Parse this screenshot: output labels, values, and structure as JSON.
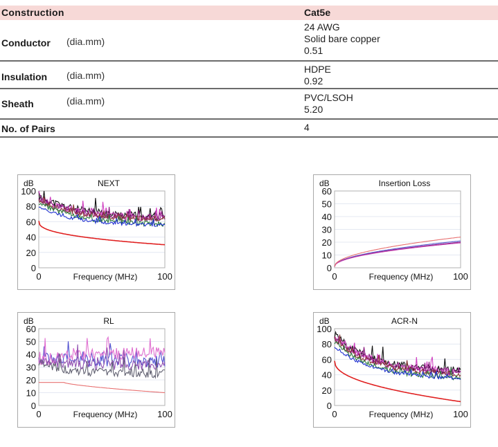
{
  "table": {
    "header": {
      "label": "Construction",
      "value": "Cat5e"
    },
    "rows": [
      {
        "label": "Conductor",
        "unit": "(dia.mm)",
        "lines": [
          "24 AWG",
          "Solid bare copper",
          "0.51"
        ]
      },
      {
        "label": "Insulation",
        "unit": "(dia.mm)",
        "lines": [
          "HDPE",
          "0.92"
        ]
      },
      {
        "label": "Sheath",
        "unit": "(dia.mm)",
        "lines": [
          "PVC/LSOH",
          "5.20"
        ]
      },
      {
        "label": "No. of Pairs",
        "unit": "",
        "lines": [
          "4"
        ]
      }
    ]
  },
  "colors": {
    "header_bg": "#f7d9d7",
    "limit_line": "#e02020"
  },
  "chart_data": [
    {
      "type": "line",
      "title": "NEXT",
      "ylabel": "dB",
      "xlabel": "Frequency (MHz)",
      "xlim": [
        0,
        100
      ],
      "ylim": [
        0,
        100
      ],
      "yticks": [
        0,
        20,
        40,
        60,
        80,
        100
      ],
      "xticks": [
        0,
        100
      ],
      "grid": true,
      "limit": {
        "name": "limit",
        "color": "#e02020",
        "start": 61,
        "end": 30,
        "shape": "decay"
      },
      "series": [
        {
          "name": "pair-black",
          "color": "#111111",
          "start": 92,
          "end": 64,
          "noise": 14
        },
        {
          "name": "pair-magenta",
          "color": "#d040c0",
          "start": 90,
          "end": 62,
          "noise": 14
        },
        {
          "name": "pair-purple",
          "color": "#8a1a80",
          "start": 88,
          "end": 62,
          "noise": 12
        },
        {
          "name": "pair-brown",
          "color": "#8a3a3a",
          "start": 86,
          "end": 61,
          "noise": 10
        },
        {
          "name": "pair-green",
          "color": "#2a7a3a",
          "start": 84,
          "end": 55,
          "noise": 9
        },
        {
          "name": "pair-blue",
          "color": "#2030d0",
          "start": 78,
          "end": 54,
          "noise": 6
        }
      ]
    },
    {
      "type": "line",
      "title": "Insertion Loss",
      "ylabel": "dB",
      "xlabel": "Frequency (MHz)",
      "xlim": [
        0,
        100
      ],
      "ylim": [
        0,
        60
      ],
      "yticks": [
        0,
        10,
        20,
        30,
        40,
        50,
        60
      ],
      "xticks": [
        0,
        100
      ],
      "grid": true,
      "limit": {
        "name": "limit",
        "color": "#e87070",
        "start": 1,
        "end": 24,
        "shape": "sqrt"
      },
      "series": [
        {
          "name": "pair-blue",
          "color": "#6060d0",
          "start": 1,
          "end": 21,
          "noise": 0
        },
        {
          "name": "pair-purple",
          "color": "#8a1a80",
          "start": 1,
          "end": 20,
          "noise": 0
        },
        {
          "name": "pair-magenta",
          "color": "#c040b0",
          "start": 1,
          "end": 19.5,
          "noise": 0
        }
      ]
    },
    {
      "type": "line",
      "title": "RL",
      "ylabel": "dB",
      "xlabel": "Frequency (MHz)",
      "xlim": [
        0,
        100
      ],
      "ylim": [
        0,
        60
      ],
      "yticks": [
        0,
        10,
        20,
        30,
        40,
        50,
        60
      ],
      "xticks": [
        0,
        100
      ],
      "grid": true,
      "limit": {
        "name": "limit",
        "color": "#e87070",
        "start": 18,
        "end": 10,
        "shape": "rl"
      },
      "series": [
        {
          "name": "pair-blue",
          "color": "#5050d0",
          "start": 35,
          "end": 33,
          "noise": 14
        },
        {
          "name": "pair-pink",
          "color": "#e070d0",
          "start": 33,
          "end": 40,
          "noise": 13
        },
        {
          "name": "pair-gray",
          "color": "#606070",
          "start": 32,
          "end": 23,
          "noise": 10
        },
        {
          "name": "pair-violet",
          "color": "#9050b0",
          "start": 34,
          "end": 30,
          "noise": 11
        }
      ]
    },
    {
      "type": "line",
      "title": "ACR-N",
      "ylabel": "dB",
      "xlabel": "Frequency (MHz)",
      "xlim": [
        0,
        100
      ],
      "ylim": [
        0,
        100
      ],
      "yticks": [
        0,
        20,
        40,
        60,
        80,
        100
      ],
      "xticks": [
        0,
        100
      ],
      "grid": true,
      "limit": {
        "name": "limit",
        "color": "#e02020",
        "start": 58,
        "end": 5,
        "shape": "decay2"
      },
      "series": [
        {
          "name": "pair-black",
          "color": "#111111",
          "start": 90,
          "end": 42,
          "noise": 14
        },
        {
          "name": "pair-magenta",
          "color": "#d040c0",
          "start": 88,
          "end": 40,
          "noise": 14
        },
        {
          "name": "pair-purple",
          "color": "#8a1a80",
          "start": 86,
          "end": 40,
          "noise": 12
        },
        {
          "name": "pair-brown",
          "color": "#8a3a3a",
          "start": 85,
          "end": 38,
          "noise": 10
        },
        {
          "name": "pair-green",
          "color": "#2a7a3a",
          "start": 82,
          "end": 33,
          "noise": 9
        },
        {
          "name": "pair-blue",
          "color": "#2030d0",
          "start": 76,
          "end": 33,
          "noise": 6
        }
      ]
    }
  ]
}
